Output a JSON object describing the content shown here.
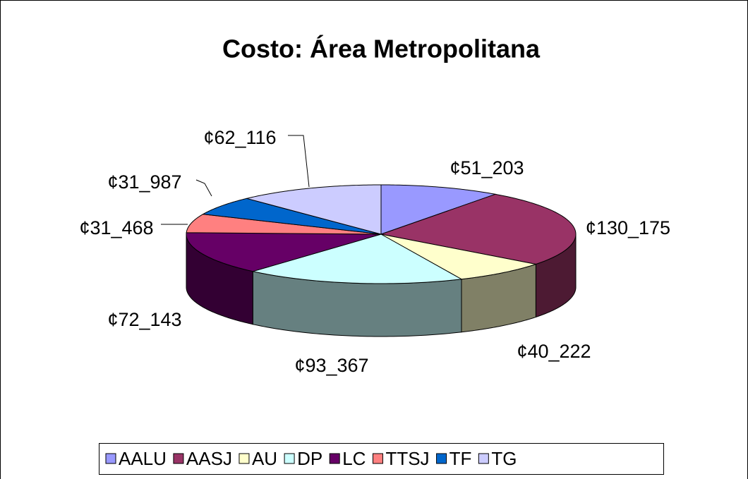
{
  "chart_data": {
    "type": "pie",
    "title": "Costo: Área Metropolitana",
    "categories": [
      "AALU",
      "AASJ",
      "AU",
      "DP",
      "LC",
      "TTSJ",
      "TF",
      "TG"
    ],
    "values": [
      51203,
      130175,
      40222,
      93367,
      72143,
      31468,
      31987,
      62116
    ],
    "value_labels": [
      "¢51_203",
      "¢130_175",
      "¢40_222",
      "¢93_367",
      "¢72_143",
      "¢31_468",
      "¢31_987",
      "¢62_116"
    ],
    "colors": [
      "#9999ff",
      "#993366",
      "#ffffcc",
      "#ccffff",
      "#660066",
      "#ff8080",
      "#0066cc",
      "#ccccff"
    ],
    "legend": "bottom"
  }
}
